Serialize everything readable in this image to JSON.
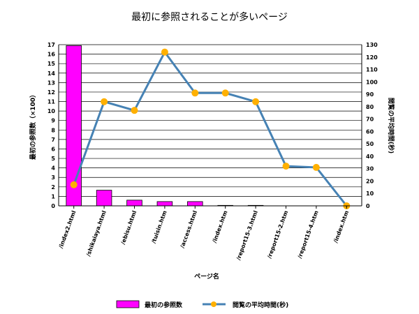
{
  "chart_data": {
    "type": "bar+line",
    "title": "最初に参照されることが多いページ",
    "xlabel": "ページ名",
    "ylabel_left": "最初の参照数（×100）",
    "ylabel_right": "閲覧の平均時間(秒)",
    "categories": [
      "/index2.html",
      "/shikaiaya.html",
      "/ebisu.html",
      "/tuisin.htm",
      "/access.html",
      "/index.htm",
      "/report15-3.html",
      "/report15-2.htm",
      "/report15-4.htm",
      "/index.htm"
    ],
    "series": [
      {
        "name": "最初の参照数",
        "type": "bar",
        "axis": "left",
        "color": "#ff00ff",
        "values": [
          16.9,
          1.65,
          0.6,
          0.45,
          0.45,
          0.05,
          0.05,
          0,
          0,
          0
        ]
      },
      {
        "name": "閲覧の平均時間(秒)",
        "type": "line",
        "axis": "right",
        "color": "#4682b4",
        "marker_color": "#ffb000",
        "values": [
          17,
          84,
          77,
          124,
          91,
          91,
          84,
          32,
          31,
          0
        ]
      }
    ],
    "ylim_left": [
      0,
      17
    ],
    "yticks_left": [
      0,
      1,
      2,
      3,
      4,
      5,
      6,
      7,
      8,
      9,
      10,
      11,
      12,
      13,
      14,
      15,
      16,
      17
    ],
    "ylim_right": [
      0,
      130
    ],
    "yticks_right": [
      0,
      10,
      20,
      30,
      40,
      50,
      60,
      70,
      80,
      90,
      100,
      110,
      120,
      130
    ],
    "grid": true,
    "legend_position": "bottom"
  }
}
